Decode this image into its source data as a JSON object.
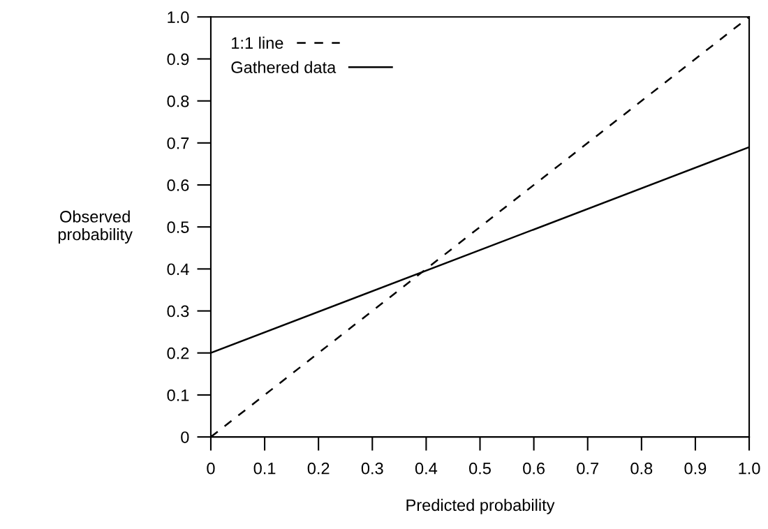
{
  "chart_data": {
    "type": "line",
    "xlabel": "Predicted probability",
    "ylabel": "Observed\nprobability",
    "x": [
      0,
      1
    ],
    "series": [
      {
        "name": "1:1 line",
        "color": "#000000",
        "line_style": "dashed",
        "values": [
          0,
          1
        ]
      },
      {
        "name": "Gathered data",
        "color": "#000000",
        "line_style": "solid",
        "values": [
          0.2,
          0.69
        ]
      }
    ],
    "xlim": [
      0,
      1
    ],
    "ylim": [
      0,
      1
    ],
    "xticks": [
      {
        "value": 0,
        "label": "0"
      },
      0.1,
      0.2,
      0.3,
      0.4,
      0.5,
      0.6,
      0.7,
      0.8,
      0.9,
      {
        "value": 1,
        "label": "1.0"
      }
    ],
    "yticks": [
      {
        "value": 0,
        "label": "0"
      },
      0.1,
      0.2,
      0.3,
      0.4,
      0.5,
      0.6,
      0.7,
      0.8,
      0.9,
      {
        "value": 1,
        "label": "1.0"
      }
    ],
    "grid": false,
    "legend": "top left",
    "marker": "none"
  }
}
